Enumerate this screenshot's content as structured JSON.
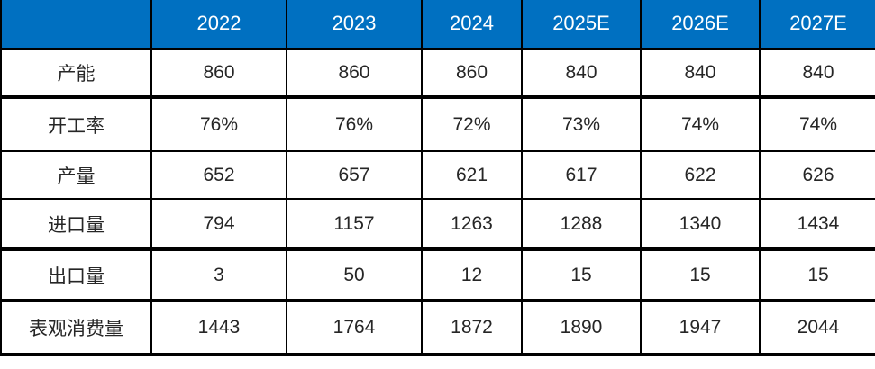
{
  "chart_data": {
    "type": "table",
    "columns": [
      "2022",
      "2023",
      "2024",
      "2025E",
      "2026E",
      "2027E"
    ],
    "rows": [
      {
        "label": "产能",
        "values": [
          "860",
          "860",
          "860",
          "840",
          "840",
          "840"
        ]
      },
      {
        "label": "开工率",
        "values": [
          "76%",
          "76%",
          "72%",
          "73%",
          "74%",
          "74%"
        ]
      },
      {
        "label": "产量",
        "values": [
          "652",
          "657",
          "621",
          "617",
          "622",
          "626"
        ]
      },
      {
        "label": "进口量",
        "values": [
          "794",
          "1157",
          "1263",
          "1288",
          "1340",
          "1434"
        ]
      },
      {
        "label": "出口量",
        "values": [
          "3",
          "50",
          "12",
          "15",
          "15",
          "15"
        ]
      },
      {
        "label": "表观消费量",
        "values": [
          "1443",
          "1764",
          "1872",
          "1890",
          "1947",
          "2044"
        ]
      }
    ],
    "corner_cell_text": "",
    "layout": {
      "grid": "on",
      "header_position": "top"
    },
    "colors": {
      "header_bg": "#0070C1",
      "header_text": "#FFFFFF",
      "body_text": "#262626",
      "border": "#000000",
      "body_bg": "#FFFFFF"
    }
  }
}
